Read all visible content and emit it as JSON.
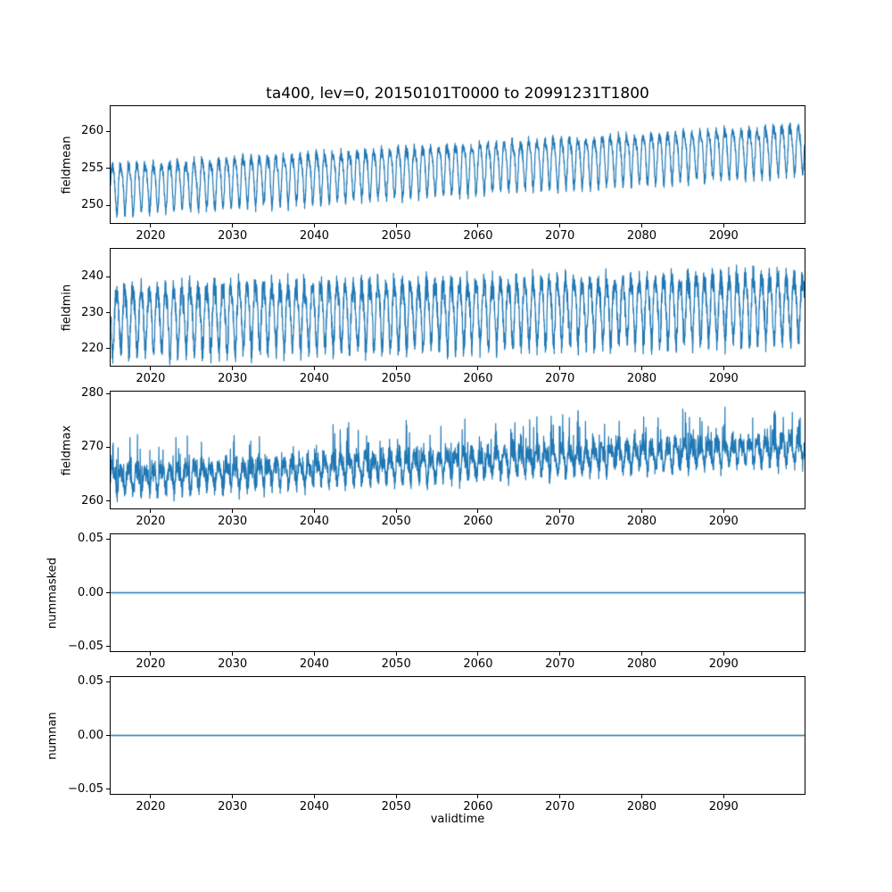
{
  "figure": {
    "title": "ta400, lev=0, 20150101T0000 to 20991231T1800",
    "background": "#ffffff",
    "line_color": "#1f77b4"
  },
  "x_axis": {
    "label": "validtime",
    "range": [
      2015,
      2100
    ],
    "ticks": [
      2020,
      2030,
      2040,
      2050,
      2060,
      2070,
      2080,
      2090
    ],
    "tick_labels": [
      "2020",
      "2030",
      "2040",
      "2050",
      "2060",
      "2070",
      "2080",
      "2090"
    ]
  },
  "chart_data": [
    {
      "type": "line",
      "name": "fieldmean",
      "ylabel": "fieldmean",
      "ylim": [
        247.5,
        263.5
      ],
      "yticks": [
        250,
        255,
        260
      ],
      "ytick_labels": [
        "250",
        "255",
        "260"
      ],
      "trend": {
        "start": 252.5,
        "end": 258.0
      },
      "seasonal_amp": 3.1,
      "harmonic2_amp": 0.7,
      "noise_amp": 1.0,
      "spike_amp": 0,
      "phase": 0,
      "seed": 11
    },
    {
      "type": "line",
      "name": "fieldmin",
      "ylabel": "fieldmin",
      "ylim": [
        215,
        248
      ],
      "yticks": [
        220,
        230,
        240
      ],
      "ytick_labels": [
        "220",
        "230",
        "240"
      ],
      "trend": {
        "start": 228.5,
        "end": 232.5
      },
      "seasonal_amp": 8.5,
      "harmonic2_amp": 1.5,
      "noise_amp": 4.5,
      "spike_amp": 0,
      "phase": 0.5,
      "seed": 22
    },
    {
      "type": "line",
      "name": "fieldmax",
      "ylabel": "fieldmax",
      "ylim": [
        258.5,
        280.5
      ],
      "yticks": [
        260,
        270,
        280
      ],
      "ytick_labels": [
        "260",
        "270",
        "280"
      ],
      "trend": {
        "start": 264.0,
        "end": 270.0
      },
      "seasonal_amp": 2.0,
      "harmonic2_amp": 0.7,
      "noise_amp": 2.4,
      "spike_amp": 7,
      "phase": 0,
      "seed": 33
    },
    {
      "type": "line",
      "name": "nummasked",
      "ylabel": "nummasked",
      "ylim": [
        -0.0552,
        0.0552
      ],
      "yticks": [
        -0.05,
        0.0,
        0.05
      ],
      "ytick_labels": [
        "−0.05",
        "0.00",
        "0.05"
      ],
      "constant": 0
    },
    {
      "type": "line",
      "name": "numnan",
      "ylabel": "numnan",
      "ylim": [
        -0.0552,
        0.0552
      ],
      "yticks": [
        -0.05,
        0.0,
        0.05
      ],
      "ytick_labels": [
        "−0.05",
        "0.00",
        "0.05"
      ],
      "constant": 0
    }
  ]
}
